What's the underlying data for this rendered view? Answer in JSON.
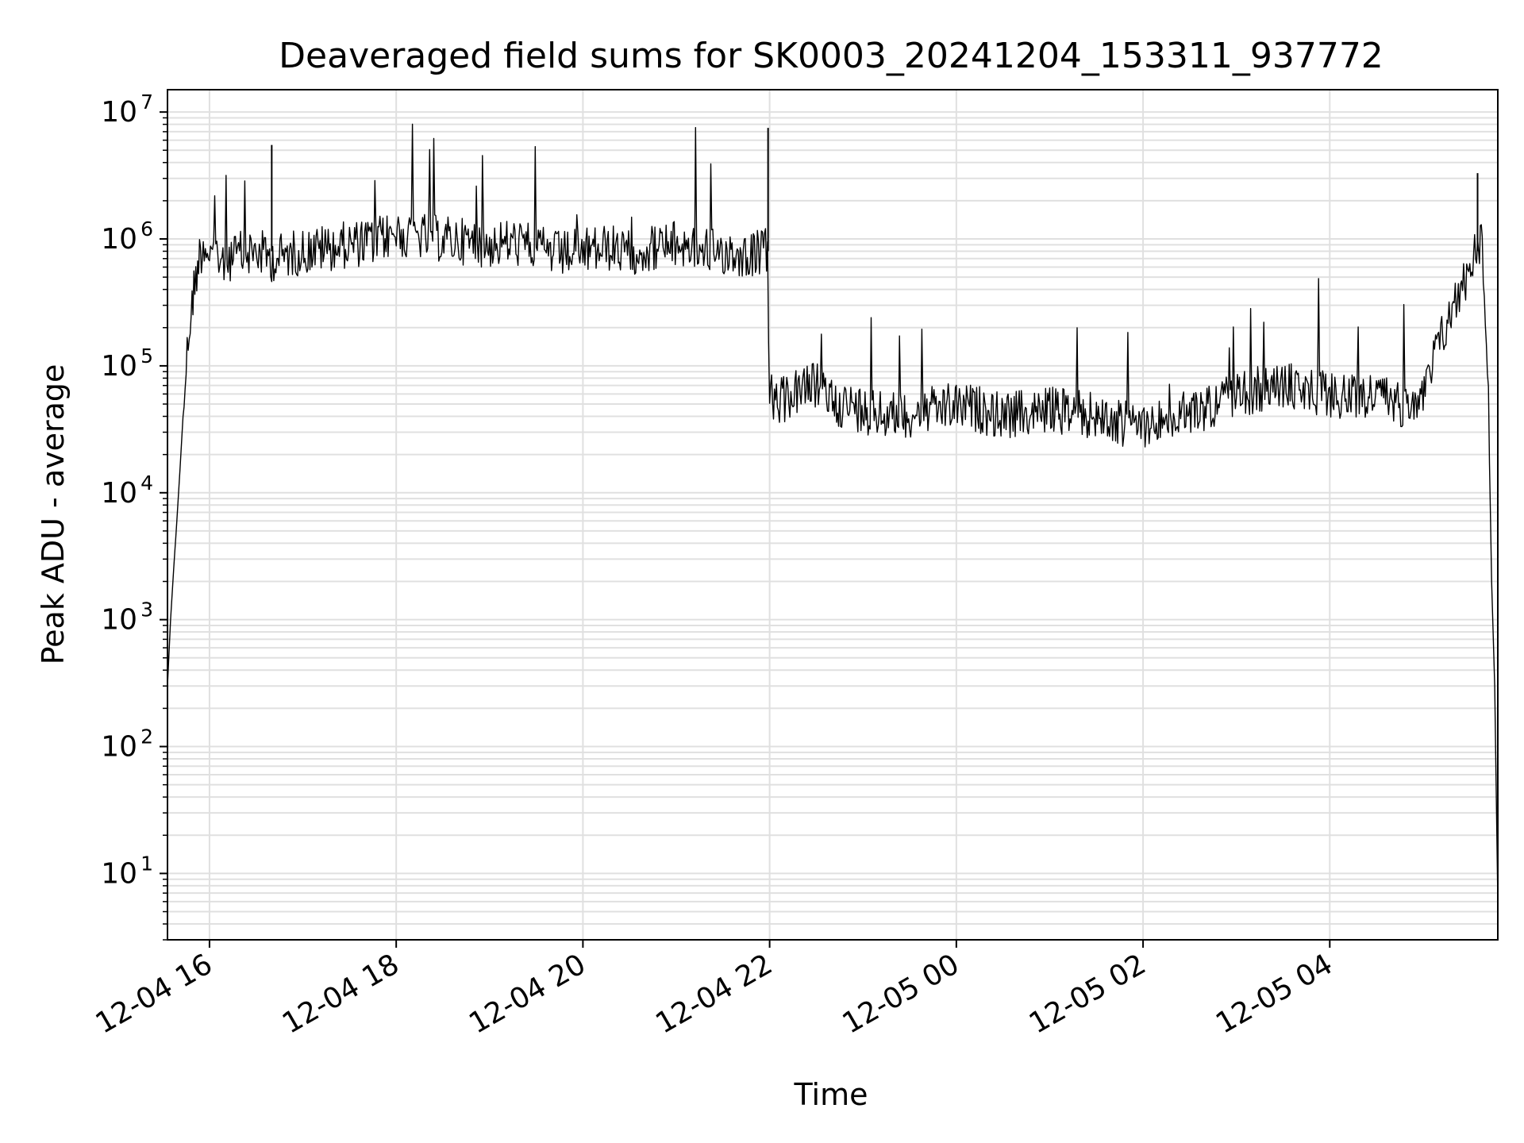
{
  "chart_data": {
    "type": "line",
    "title": "Deaveraged field sums for SK0003_20241204_153311_937772",
    "xlabel": "Time",
    "ylabel": "Peak ADU - average",
    "yscale": "log",
    "ylim": [
      3,
      15000000
    ],
    "xlim": [
      "2024-12-04 15:33",
      "2024-12-05 05:48"
    ],
    "grid": true,
    "line_color": "#000000",
    "grid_color": "#e0e0e0",
    "x_ticks": [
      {
        "value": "2024-12-04 16:00",
        "label": "12-04 16"
      },
      {
        "value": "2024-12-04 18:00",
        "label": "12-04 18"
      },
      {
        "value": "2024-12-04 20:00",
        "label": "12-04 20"
      },
      {
        "value": "2024-12-04 22:00",
        "label": "12-04 22"
      },
      {
        "value": "2024-12-05 00:00",
        "label": "12-05 00"
      },
      {
        "value": "2024-12-05 02:00",
        "label": "12-05 02"
      },
      {
        "value": "2024-12-05 04:00",
        "label": "12-05 04"
      }
    ],
    "y_ticks": [
      {
        "value": 10,
        "base": "10",
        "exp": "1"
      },
      {
        "value": 100,
        "base": "10",
        "exp": "2"
      },
      {
        "value": 1000,
        "base": "10",
        "exp": "3"
      },
      {
        "value": 10000,
        "base": "10",
        "exp": "4"
      },
      {
        "value": 100000,
        "base": "10",
        "exp": "5"
      },
      {
        "value": 1000000,
        "base": "10",
        "exp": "6"
      },
      {
        "value": 10000000,
        "base": "10",
        "exp": "7"
      }
    ],
    "series": [
      {
        "x": [
          "2024-12-04 15:33",
          "2024-12-04 15:35",
          "2024-12-04 15:37",
          "2024-12-04 15:39",
          "2024-12-04 15:41",
          "2024-12-04 15:43",
          "2024-12-04 15:45",
          "2024-12-04 15:47",
          "2024-12-04 15:50",
          "2024-12-04 15:53",
          "2024-12-04 15:56",
          "2024-12-04 16:00",
          "2024-12-04 16:10",
          "2024-12-04 16:20",
          "2024-12-04 16:30",
          "2024-12-04 16:40",
          "2024-12-04 16:50",
          "2024-12-04 17:00",
          "2024-12-04 17:15",
          "2024-12-04 17:30",
          "2024-12-04 17:45",
          "2024-12-04 18:00",
          "2024-12-04 18:15",
          "2024-12-04 18:30",
          "2024-12-04 18:45",
          "2024-12-04 19:00",
          "2024-12-04 19:15",
          "2024-12-04 19:30",
          "2024-12-04 19:45",
          "2024-12-04 20:00",
          "2024-12-04 20:15",
          "2024-12-04 20:30",
          "2024-12-04 20:45",
          "2024-12-04 21:00",
          "2024-12-04 21:15",
          "2024-12-04 21:30",
          "2024-12-04 21:45",
          "2024-12-04 21:58",
          "2024-12-04 22:00",
          "2024-12-04 22:05",
          "2024-12-04 22:15",
          "2024-12-04 22:30",
          "2024-12-04 22:45",
          "2024-12-04 23:00",
          "2024-12-04 23:15",
          "2024-12-04 23:30",
          "2024-12-04 23:45",
          "2024-12-05 00:00",
          "2024-12-05 00:15",
          "2024-12-05 00:30",
          "2024-12-05 00:45",
          "2024-12-05 01:00",
          "2024-12-05 01:15",
          "2024-12-05 01:30",
          "2024-12-05 01:45",
          "2024-12-05 02:00",
          "2024-12-05 02:15",
          "2024-12-05 02:30",
          "2024-12-05 02:45",
          "2024-12-05 03:00",
          "2024-12-05 03:15",
          "2024-12-05 03:30",
          "2024-12-05 03:45",
          "2024-12-05 04:00",
          "2024-12-05 04:15",
          "2024-12-05 04:30",
          "2024-12-05 04:45",
          "2024-12-05 05:00",
          "2024-12-05 05:10",
          "2024-12-05 05:20",
          "2024-12-05 05:30",
          "2024-12-05 05:35",
          "2024-12-05 05:38",
          "2024-12-05 05:40",
          "2024-12-05 05:42",
          "2024-12-05 05:44",
          "2024-12-05 05:46",
          "2024-12-05 05:48"
        ],
        "y": [
          300,
          1000,
          2500,
          6000,
          15000,
          40000,
          100000,
          200000,
          400000,
          700000,
          900000,
          800000,
          700000,
          750000,
          800000,
          700000,
          750000,
          800000,
          850000,
          900000,
          950000,
          1100000,
          1050000,
          1000000,
          950000,
          900000,
          950000,
          850000,
          750000,
          800000,
          850000,
          800000,
          850000,
          900000,
          850000,
          800000,
          750000,
          800000,
          60000,
          50000,
          60000,
          70000,
          50000,
          45000,
          40000,
          42000,
          45000,
          48000,
          45000,
          40000,
          42000,
          45000,
          43000,
          40000,
          35000,
          35000,
          38000,
          42000,
          50000,
          60000,
          65000,
          70000,
          65000,
          60000,
          55000,
          60000,
          50000,
          55000,
          150000,
          300000,
          600000,
          1000000,
          900000,
          300000,
          50000,
          2000,
          300,
          6
        ],
        "spikes": [
          {
            "x": "2024-12-04 16:40",
            "y": 5500000
          },
          {
            "x": "2024-12-04 21:59",
            "y": 7500000
          },
          {
            "x": "2024-12-05 05:35",
            "y": 3300000
          }
        ]
      }
    ]
  }
}
